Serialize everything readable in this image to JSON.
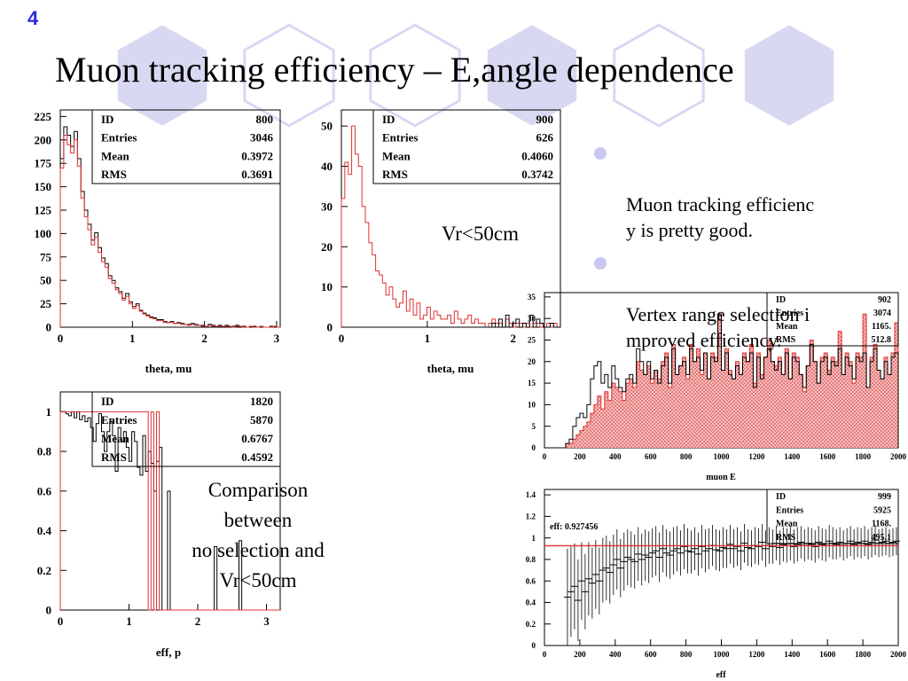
{
  "slide": {
    "number": "4",
    "title": "Muon tracking efficiency – E,angle dependence",
    "bullets": [
      {
        "text": "Muon tracking efficienc\ny is pretty good."
      },
      {
        "text": "Vertex range selection i\nmproved efficiency."
      }
    ],
    "notes": {
      "vr_cut": "Vr<50cm",
      "comparison": "Comparison\nbetween\nno selection and\nVr<50cm"
    },
    "colors": {
      "hex_fill": "#d8d8f2",
      "hex_outline": "#d8d8f2",
      "slide_number": "#2a2ad6",
      "selected_series": "#e03030"
    }
  },
  "chart_data": [
    {
      "id": "theta-all",
      "type": "histogram",
      "xlabel": "theta, mu",
      "xlim": [
        0,
        3.05
      ],
      "ylim": [
        0,
        232
      ],
      "x_ticks": [
        0,
        1,
        2,
        3
      ],
      "y_ticks": [
        0,
        25,
        50,
        75,
        100,
        125,
        150,
        175,
        200,
        225
      ],
      "stats": {
        "labels": [
          "ID",
          "Entries",
          "Mean",
          "RMS"
        ],
        "values": [
          "800",
          "3046",
          "0.3972",
          "0.3691"
        ]
      },
      "series": [
        {
          "name": "no selection",
          "color": "#000000",
          "values": [
            180,
            214,
            205,
            193,
            209,
            180,
            145,
            125,
            110,
            93,
            101,
            85,
            74,
            68,
            55,
            50,
            42,
            38,
            31,
            36,
            27,
            22,
            25,
            18,
            15,
            13,
            11,
            10,
            8,
            8,
            6,
            5,
            6,
            4,
            5,
            4,
            3,
            3,
            4,
            3,
            2,
            2,
            1,
            3,
            2,
            1,
            2,
            1,
            2,
            1,
            1,
            2,
            1,
            1,
            0,
            1,
            1,
            0,
            1,
            0,
            0,
            1,
            1,
            0
          ]
        },
        {
          "name": "Vr<50cm",
          "color": "#e03030",
          "values": [
            170,
            205,
            195,
            186,
            200,
            172,
            138,
            118,
            104,
            88,
            96,
            80,
            70,
            64,
            52,
            47,
            40,
            36,
            29,
            33,
            25,
            20,
            23,
            17,
            14,
            12,
            10,
            9,
            7,
            7,
            5,
            5,
            5,
            4,
            4,
            3,
            3,
            2,
            3,
            2,
            2,
            1,
            1,
            2,
            1,
            1,
            1,
            1,
            1,
            1,
            0,
            1,
            1,
            0,
            0,
            1,
            0,
            0,
            1,
            0,
            0,
            0,
            1,
            0
          ]
        }
      ]
    },
    {
      "id": "theta-vr",
      "type": "histogram",
      "xlabel": "theta, mu",
      "xlim": [
        0,
        2.55
      ],
      "ylim": [
        0,
        54
      ],
      "x_ticks": [
        0,
        1,
        2
      ],
      "y_ticks": [
        0,
        10,
        20,
        30,
        40,
        50
      ],
      "stats": {
        "labels": [
          "ID",
          "Entries",
          "Mean",
          "RMS"
        ],
        "values": [
          "900",
          "626",
          "0.4060",
          "0.3742"
        ]
      },
      "series": [
        {
          "name": "Vr<50cm",
          "color": "#e03030",
          "values": [
            32,
            41,
            38,
            50,
            43,
            40,
            30,
            26,
            21,
            18,
            14,
            13,
            11,
            8,
            10,
            7,
            5,
            6,
            9,
            4,
            7,
            3,
            6,
            2,
            3,
            5,
            2,
            4,
            3,
            2,
            2,
            3,
            1,
            4,
            2,
            1,
            2,
            3,
            1,
            2,
            1,
            1,
            0,
            1,
            2,
            1,
            1,
            0,
            2,
            1,
            0,
            1,
            1,
            0,
            1,
            0,
            1,
            1,
            0,
            0,
            1,
            0,
            1,
            0
          ]
        },
        {
          "name": "no selection",
          "color": "#000000",
          "values": [
            0,
            0,
            0,
            0,
            0,
            0,
            0,
            0,
            0,
            0,
            0,
            0,
            0,
            0,
            0,
            0,
            0,
            0,
            0,
            0,
            0,
            0,
            0,
            0,
            0,
            0,
            0,
            0,
            0,
            0,
            0,
            0,
            0,
            0,
            0,
            0,
            0,
            0,
            0,
            0,
            0,
            0,
            0,
            0,
            1,
            0,
            2,
            0,
            3,
            0,
            1,
            2,
            0,
            1,
            0,
            3,
            0,
            2,
            1,
            0,
            0,
            1,
            0,
            0
          ]
        }
      ]
    },
    {
      "id": "eff-p",
      "type": "histogram",
      "xlabel": "eff, p",
      "xlim": [
        0,
        3.2
      ],
      "ylim": [
        0,
        1.1
      ],
      "x_ticks": [
        0,
        1,
        2,
        3
      ],
      "y_ticks": [
        0,
        0.2,
        0.4,
        0.6,
        0.8,
        1
      ],
      "stats": {
        "labels": [
          "ID",
          "Entries",
          "Mean",
          "RMS"
        ],
        "values": [
          "1820",
          "5870",
          "0.6767",
          "0.4592"
        ]
      },
      "series": [
        {
          "name": "no selection",
          "color": "#000000",
          "values": [
            1,
            1,
            0.99,
            0.98,
            1,
            0.97,
            1,
            0.96,
            0.98,
            0.95,
            0.97,
            0.92,
            0.85,
            0.94,
            0.99,
            0.9,
            0.8,
            0.9,
            0.95,
            0.88,
            0.7,
            0.92,
            0.85,
            0.9,
            0.82,
            0.75,
            0.9,
            0.85,
            0.72,
            0.68,
            0.88,
            0.7,
            0.8,
            0.74,
            0.6,
            0.75,
            0.82,
            0,
            0,
            0.6,
            0,
            0,
            0,
            0,
            0,
            0,
            0,
            0,
            0,
            0,
            0,
            0,
            0,
            0,
            0,
            0,
            0.32,
            0,
            0,
            0,
            0,
            0,
            0,
            0,
            0,
            0.35,
            0,
            0,
            0,
            0,
            0,
            0,
            0,
            0,
            0,
            0,
            0,
            0,
            0,
            0
          ]
        },
        {
          "name": "Vr<50cm",
          "color": "#e03030",
          "values": [
            1,
            1,
            1,
            1,
            1,
            1,
            1,
            1,
            1,
            1,
            1,
            1,
            1,
            1,
            1,
            1,
            1,
            1,
            1,
            1,
            1,
            1,
            1,
            1,
            1,
            1,
            1,
            1,
            1,
            1,
            1,
            1,
            0,
            1,
            0,
            1,
            0,
            0,
            0,
            0,
            0,
            0,
            0,
            0,
            0,
            0,
            0,
            0,
            0,
            0,
            0,
            0,
            0,
            0,
            0,
            0,
            0,
            0,
            0,
            0,
            0,
            0,
            0,
            0,
            0,
            0,
            0,
            0,
            0,
            0,
            0,
            0,
            0,
            0,
            0,
            0,
            0,
            0,
            0,
            0
          ]
        }
      ]
    },
    {
      "id": "muon-e",
      "type": "histogram",
      "xlabel": "muon E",
      "xlim": [
        0,
        2000
      ],
      "ylim": [
        0,
        36
      ],
      "x_ticks": [
        0,
        200,
        400,
        600,
        800,
        1000,
        1200,
        1400,
        1600,
        1800,
        2000
      ],
      "y_ticks": [
        0,
        5,
        10,
        15,
        20,
        25,
        30,
        35
      ],
      "stats": {
        "labels": [
          "ID",
          "Entries",
          "Mean",
          "RMS"
        ],
        "values": [
          "902",
          "3074",
          "1165.",
          "512.8"
        ]
      },
      "series": [
        {
          "name": "no selection",
          "color": "#000000",
          "values": [
            0,
            0,
            0,
            0,
            0,
            0,
            1,
            2,
            5,
            7,
            8,
            7,
            10,
            16,
            19,
            20,
            15,
            17,
            14,
            19,
            16,
            14,
            13,
            16,
            17,
            15,
            23,
            20,
            17,
            20,
            16,
            18,
            15,
            19,
            21,
            15,
            23,
            17,
            19,
            20,
            17,
            23,
            20,
            21,
            18,
            22,
            16,
            21,
            20,
            31,
            18,
            22,
            17,
            16,
            19,
            17,
            21,
            20,
            22,
            14,
            21,
            16,
            21,
            23,
            20,
            18,
            20,
            17,
            22,
            16,
            21,
            20,
            17,
            14,
            19,
            24,
            20,
            15,
            20,
            21,
            17,
            20,
            19,
            23,
            17,
            21,
            19,
            16,
            21,
            20,
            22,
            14,
            20,
            23,
            18,
            16,
            20,
            17,
            21,
            22
          ]
        },
        {
          "name": "Vr<50cm",
          "color": "#e03030",
          "values": [
            0,
            0,
            0,
            0,
            0,
            0,
            1,
            1,
            2,
            3,
            4,
            5,
            6,
            8,
            10,
            12,
            9,
            13,
            11,
            15,
            14,
            13,
            11,
            15,
            16,
            14,
            20,
            18,
            17,
            19,
            15,
            18,
            16,
            20,
            22,
            14,
            24,
            17,
            19,
            21,
            16,
            24,
            20,
            23,
            17,
            22,
            16,
            22,
            21,
            31,
            18,
            23,
            18,
            16,
            20,
            17,
            22,
            20,
            24,
            15,
            22,
            17,
            21,
            25,
            20,
            19,
            21,
            17,
            23,
            16,
            22,
            21,
            17,
            13,
            19,
            25,
            20,
            15,
            21,
            22,
            18,
            21,
            20,
            27,
            17,
            22,
            20,
            15,
            22,
            21,
            31,
            14,
            21,
            24,
            18,
            16,
            21,
            17,
            22,
            29
          ]
        }
      ]
    },
    {
      "id": "eff",
      "type": "scatter",
      "xlabel": "eff",
      "xlim": [
        0,
        2000
      ],
      "ylim": [
        0,
        1.45
      ],
      "x_ticks": [
        0,
        200,
        400,
        600,
        800,
        1000,
        1200,
        1400,
        1600,
        1800,
        2000
      ],
      "y_ticks": [
        0,
        0.2,
        0.4,
        0.6,
        0.8,
        1,
        1.2,
        1.4
      ],
      "stats": {
        "labels": [
          "ID",
          "Entries",
          "Mean",
          "RMS"
        ],
        "values": [
          "999",
          "5925",
          "1168.",
          "495.1"
        ]
      },
      "fit_label": "eff: 0.927456",
      "fit_value": 0.927456,
      "series": [
        {
          "name": "eff",
          "color": "#000000",
          "x": [
            130,
            150,
            170,
            190,
            210,
            230,
            250,
            270,
            290,
            310,
            330,
            350,
            370,
            390,
            410,
            430,
            450,
            470,
            490,
            510,
            530,
            550,
            570,
            590,
            610,
            630,
            650,
            670,
            690,
            710,
            730,
            750,
            770,
            790,
            810,
            830,
            850,
            870,
            890,
            910,
            930,
            950,
            970,
            990,
            1010,
            1030,
            1050,
            1070,
            1090,
            1110,
            1130,
            1150,
            1170,
            1190,
            1210,
            1230,
            1250,
            1270,
            1290,
            1310,
            1330,
            1350,
            1370,
            1390,
            1410,
            1430,
            1450,
            1470,
            1490,
            1510,
            1530,
            1550,
            1570,
            1590,
            1610,
            1630,
            1650,
            1670,
            1690,
            1710,
            1730,
            1750,
            1770,
            1790,
            1810,
            1830,
            1850,
            1870,
            1890,
            1910,
            1930,
            1950,
            1970,
            1990
          ],
          "y": [
            0.45,
            0.5,
            0.55,
            0.42,
            0.6,
            0.5,
            0.62,
            0.58,
            0.66,
            0.6,
            0.7,
            0.72,
            0.68,
            0.75,
            0.8,
            0.72,
            0.78,
            0.82,
            0.8,
            0.78,
            0.85,
            0.8,
            0.84,
            0.82,
            0.86,
            0.88,
            0.82,
            0.9,
            0.86,
            0.84,
            0.88,
            0.9,
            0.86,
            0.92,
            0.88,
            0.87,
            0.9,
            0.85,
            0.92,
            0.88,
            0.9,
            0.93,
            0.89,
            0.88,
            0.91,
            0.9,
            0.94,
            0.9,
            0.92,
            0.88,
            0.95,
            0.91,
            0.9,
            0.93,
            0.92,
            0.96,
            0.9,
            0.93,
            0.92,
            0.95,
            0.91,
            0.94,
            0.93,
            0.95,
            0.92,
            0.94,
            0.96,
            0.93,
            0.95,
            0.94,
            0.92,
            0.96,
            0.94,
            0.93,
            0.97,
            0.95,
            0.94,
            0.96,
            0.93,
            0.95,
            0.97,
            0.94,
            0.96,
            0.95,
            0.97,
            0.94,
            0.96,
            0.98,
            0.95,
            0.96,
            0.97,
            0.95,
            0.96,
            0.97
          ],
          "err": [
            0.45,
            0.42,
            0.4,
            0.38,
            0.36,
            0.35,
            0.34,
            0.33,
            0.32,
            0.31,
            0.3,
            0.3,
            0.29,
            0.28,
            0.28,
            0.27,
            0.27,
            0.26,
            0.26,
            0.25,
            0.25,
            0.24,
            0.24,
            0.24,
            0.23,
            0.23,
            0.23,
            0.22,
            0.22,
            0.22,
            0.22,
            0.21,
            0.21,
            0.21,
            0.21,
            0.2,
            0.2,
            0.2,
            0.2,
            0.2,
            0.19,
            0.19,
            0.19,
            0.19,
            0.19,
            0.18,
            0.18,
            0.18,
            0.18,
            0.18,
            0.18,
            0.17,
            0.17,
            0.17,
            0.17,
            0.17,
            0.17,
            0.17,
            0.16,
            0.16,
            0.16,
            0.16,
            0.16,
            0.16,
            0.16,
            0.16,
            0.15,
            0.15,
            0.15,
            0.15,
            0.15,
            0.15,
            0.15,
            0.15,
            0.15,
            0.15,
            0.14,
            0.14,
            0.14,
            0.14,
            0.14,
            0.14,
            0.14,
            0.14,
            0.14,
            0.14,
            0.14,
            0.14,
            0.13,
            0.13,
            0.13,
            0.13,
            0.13,
            0.13
          ]
        }
      ]
    }
  ]
}
